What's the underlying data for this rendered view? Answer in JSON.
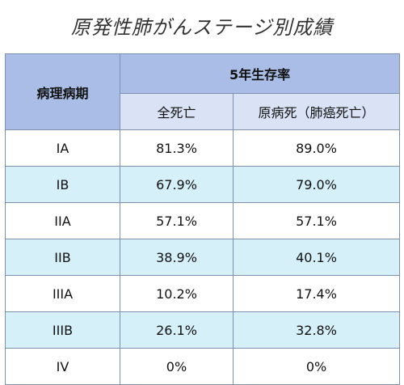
{
  "title": "原発性肺がんステージ別成績",
  "table": {
    "header_stage": "病理病期",
    "header_group": "5年生存率",
    "header_all": "全死亡",
    "header_cause": "原病死（肺癌死亡）",
    "rows": [
      {
        "stage": "IA",
        "all": "81.3%",
        "cause": "89.0%"
      },
      {
        "stage": "IB",
        "all": "67.9%",
        "cause": "79.0%"
      },
      {
        "stage": "IIA",
        "all": "57.1%",
        "cause": "57.1%"
      },
      {
        "stage": "IIB",
        "all": "38.9%",
        "cause": "40.1%"
      },
      {
        "stage": "IIIA",
        "all": "10.2%",
        "cause": "17.4%"
      },
      {
        "stage": "IIIB",
        "all": "26.1%",
        "cause": "32.8%"
      },
      {
        "stage": "IV",
        "all": "0%",
        "cause": "0%"
      }
    ]
  },
  "colors": {
    "header_main": "#a9bde6",
    "header_sub": "#d9e3f5",
    "row_alt": "#d6f0fa",
    "row_plain": "#ffffff",
    "border": "#7f8fb0"
  }
}
